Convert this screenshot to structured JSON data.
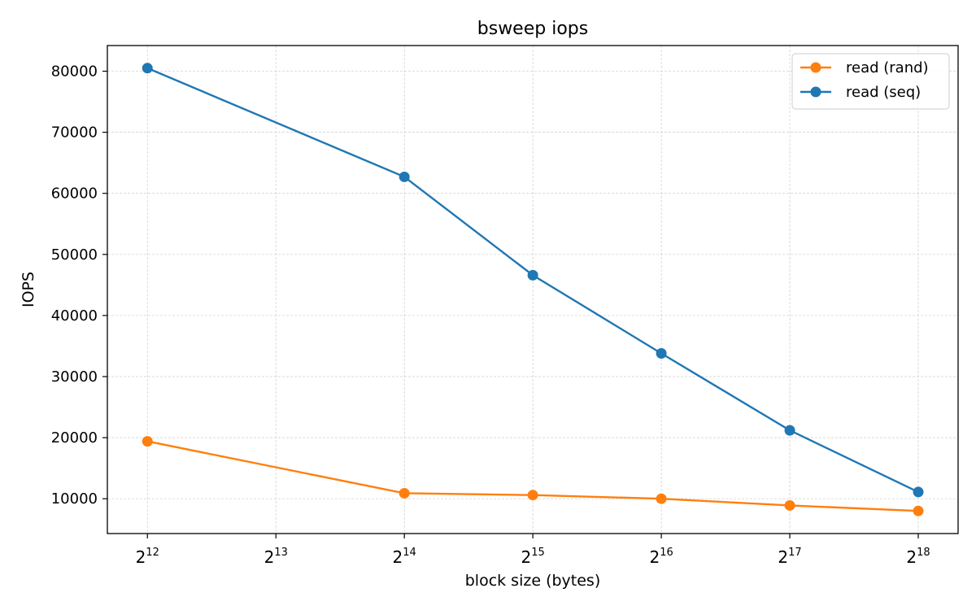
{
  "chart_data": {
    "type": "line",
    "title": "bsweep iops",
    "xlabel": "block size (bytes)",
    "ylabel": "IOPS",
    "x_scale": "log2",
    "x_ticks": [
      {
        "base": "2",
        "exp": "12",
        "value": 4096
      },
      {
        "base": "2",
        "exp": "13",
        "value": 8192
      },
      {
        "base": "2",
        "exp": "14",
        "value": 16384
      },
      {
        "base": "2",
        "exp": "15",
        "value": 32768
      },
      {
        "base": "2",
        "exp": "16",
        "value": 65536
      },
      {
        "base": "2",
        "exp": "17",
        "value": 131072
      },
      {
        "base": "2",
        "exp": "18",
        "value": 262144
      }
    ],
    "y_ticks": [
      10000,
      20000,
      30000,
      40000,
      50000,
      60000,
      70000,
      80000
    ],
    "xlim": [
      3300,
      325000
    ],
    "ylim": [
      4300,
      84200
    ],
    "grid": true,
    "legend_position": "top-right",
    "series": [
      {
        "name": "read (rand)",
        "color": "#ff7f0e",
        "x": [
          4096,
          16384,
          32768,
          65536,
          131072,
          262144
        ],
        "y": [
          19400,
          10900,
          10600,
          10000,
          8900,
          8000
        ]
      },
      {
        "name": "read (seq)",
        "color": "#1f77b4",
        "x": [
          4096,
          16384,
          32768,
          65536,
          131072,
          262144
        ],
        "y": [
          80500,
          62700,
          46600,
          33800,
          21200,
          11100
        ]
      }
    ]
  }
}
